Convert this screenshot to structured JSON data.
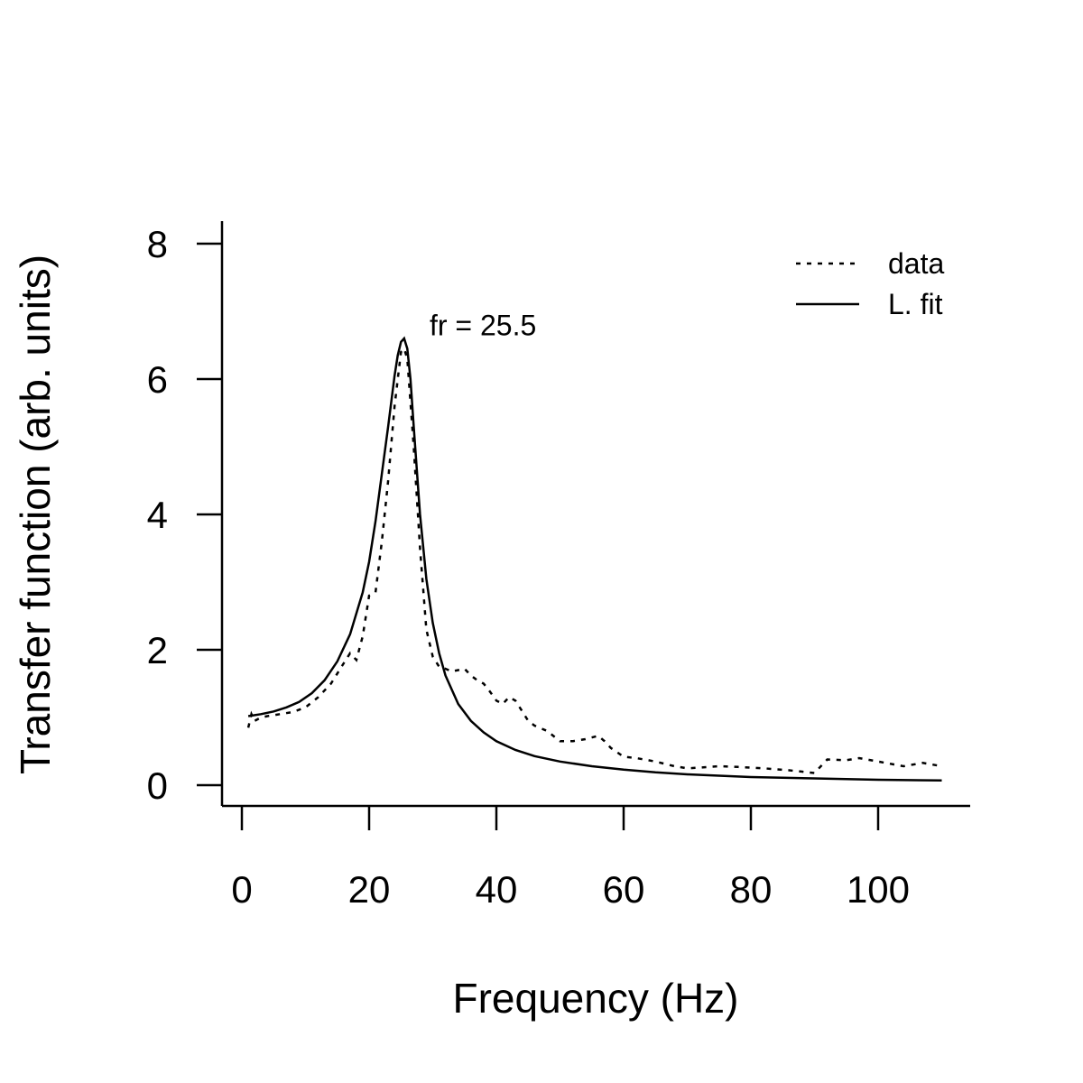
{
  "chart_data": {
    "type": "line",
    "title": "",
    "xlabel": "Frequency (Hz)",
    "ylabel": "Transfer function (arb. units)",
    "xlim": [
      0,
      110
    ],
    "ylim": [
      0,
      8
    ],
    "xticks": [
      "0",
      "20",
      "40",
      "60",
      "80",
      "100"
    ],
    "yticks": [
      "0",
      "2",
      "4",
      "6",
      "8"
    ],
    "grid": false,
    "legend_position": "top-right",
    "annotation": {
      "text": "fr = 25.5",
      "x": 29.5,
      "y": 6.65
    },
    "series": [
      {
        "name": "data",
        "style": "dotted",
        "x": [
          1,
          1.5,
          2,
          3,
          4,
          6,
          8,
          10,
          12,
          14,
          16,
          17,
          18,
          19,
          20,
          21,
          22,
          23,
          24,
          25,
          25.5,
          26,
          27,
          28,
          29,
          30,
          31,
          32,
          33,
          35,
          36,
          37,
          38,
          39,
          40,
          41,
          42,
          43,
          44,
          45,
          46,
          48,
          50,
          52,
          54,
          56,
          57,
          58,
          60,
          62,
          65,
          68,
          70,
          72,
          75,
          78,
          82,
          86,
          90,
          92,
          95,
          97,
          100,
          104,
          107,
          110
        ],
        "y": [
          0.85,
          1.05,
          0.95,
          1.0,
          1.02,
          1.05,
          1.08,
          1.15,
          1.3,
          1.5,
          1.8,
          1.95,
          1.85,
          2.2,
          2.8,
          2.85,
          3.6,
          4.5,
          5.6,
          6.4,
          6.45,
          6.3,
          5.0,
          3.5,
          2.3,
          1.9,
          1.75,
          1.72,
          1.68,
          1.72,
          1.62,
          1.55,
          1.5,
          1.38,
          1.25,
          1.2,
          1.3,
          1.25,
          1.1,
          0.95,
          0.88,
          0.8,
          0.65,
          0.65,
          0.68,
          0.73,
          0.65,
          0.55,
          0.42,
          0.4,
          0.35,
          0.28,
          0.25,
          0.26,
          0.28,
          0.27,
          0.25,
          0.22,
          0.18,
          0.38,
          0.37,
          0.4,
          0.35,
          0.28,
          0.33,
          0.28
        ]
      },
      {
        "name": "L. fit",
        "style": "solid",
        "x": [
          1,
          3,
          5,
          7,
          9,
          11,
          13,
          15,
          17,
          19,
          20,
          21,
          22,
          23,
          24,
          24.5,
          25,
          25.5,
          26,
          26.5,
          27,
          28,
          29,
          30,
          31,
          32,
          34,
          36,
          38,
          40,
          43,
          46,
          50,
          55,
          60,
          65,
          70,
          75,
          80,
          90,
          100,
          110
        ],
        "y": [
          1.02,
          1.05,
          1.09,
          1.15,
          1.23,
          1.36,
          1.55,
          1.83,
          2.23,
          2.85,
          3.3,
          3.9,
          4.6,
          5.3,
          6.05,
          6.35,
          6.55,
          6.6,
          6.45,
          6.0,
          5.3,
          4.0,
          3.05,
          2.4,
          1.95,
          1.62,
          1.2,
          0.95,
          0.78,
          0.65,
          0.52,
          0.43,
          0.35,
          0.28,
          0.23,
          0.19,
          0.16,
          0.14,
          0.12,
          0.1,
          0.08,
          0.07
        ]
      }
    ]
  }
}
